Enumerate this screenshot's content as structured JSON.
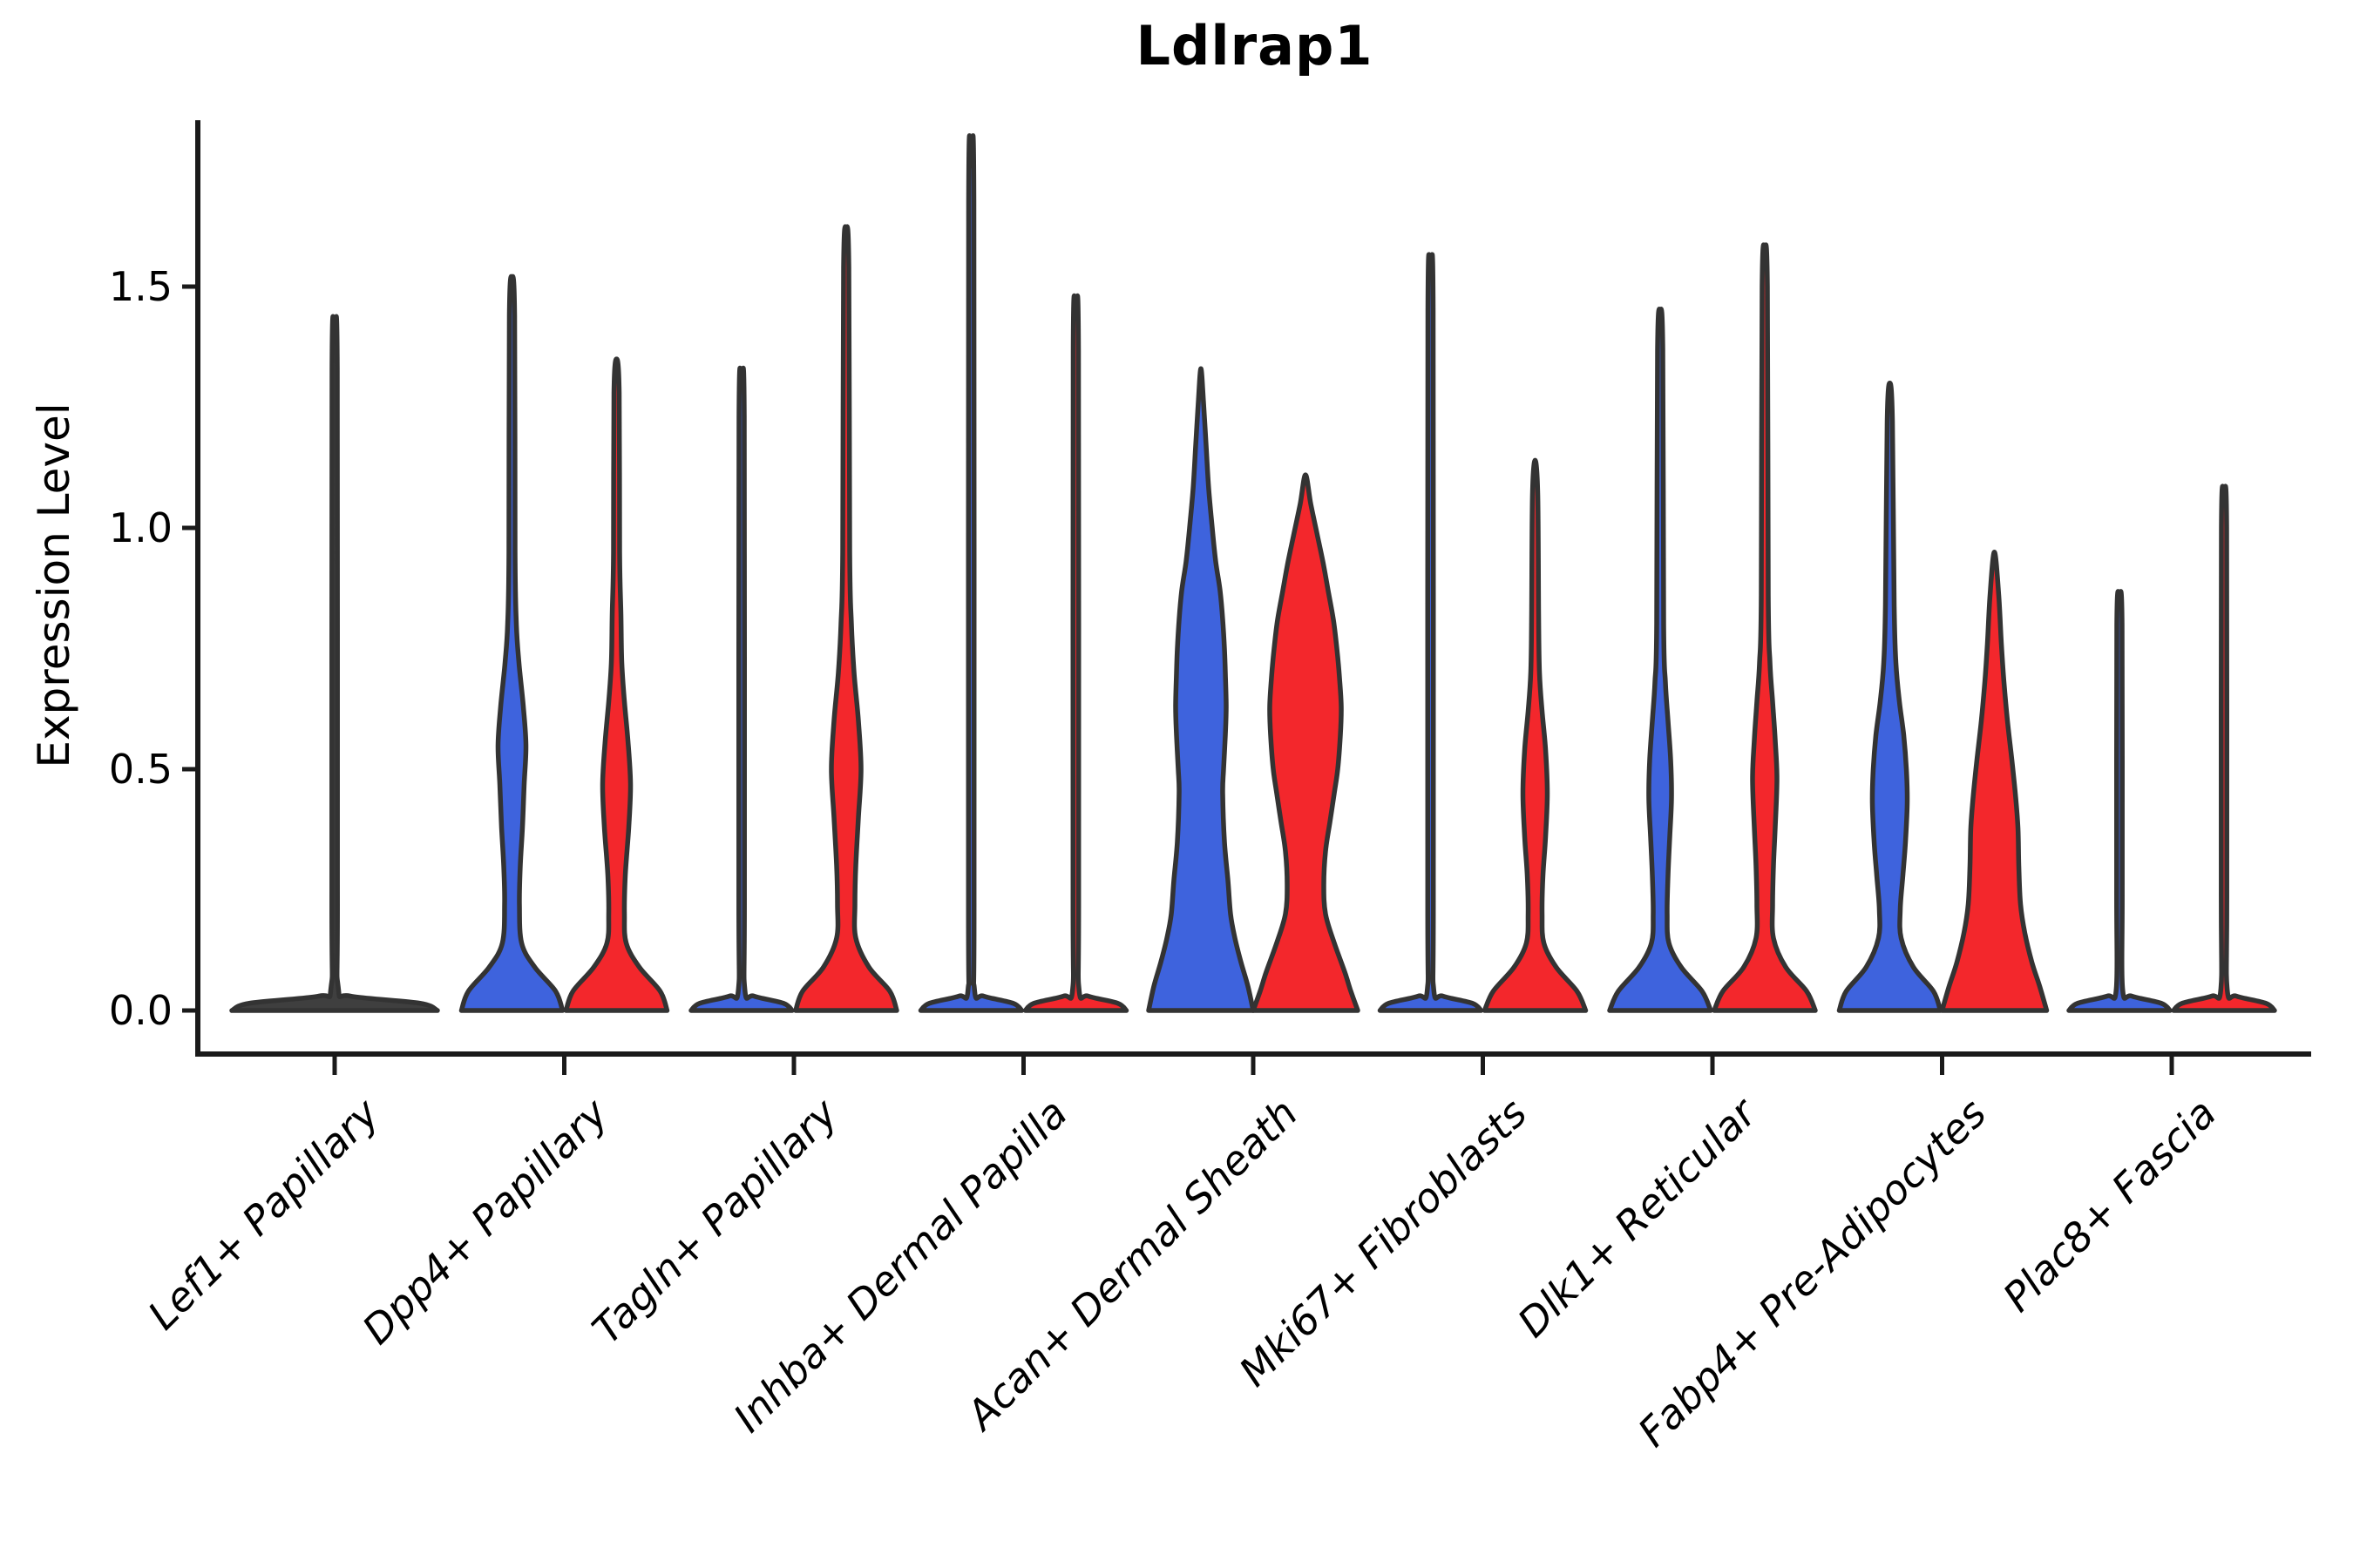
{
  "chart_data": {
    "type": "violin",
    "title": "Ldlrap1",
    "ylabel": "Expression Level",
    "xlabel": "",
    "grid": false,
    "legend": "none",
    "y_axis": {
      "ticks": [
        {
          "label": "0.0",
          "value": 0.0
        },
        {
          "label": "0.5",
          "value": 0.5
        },
        {
          "label": "1.0",
          "value": 1.0
        },
        {
          "label": "1.5",
          "value": 1.5
        }
      ],
      "ylim": [
        0,
        1.84
      ]
    },
    "categories": [
      "Lef1+ Papillary",
      "Dpp4+ Papillary",
      "Tagln+ Papillary",
      "Inhba+ Dermal Papilla",
      "Acan+ Dermal Sheath",
      "Mki67+ Fibroblasts",
      "Dlk1+ Reticular",
      "Fabp4+ Pre-Adipocytes",
      "Plac8+ Fascia"
    ],
    "colors": {
      "blue": "#3E63DD",
      "red": "#F3272C",
      "single": "#3F3F3F",
      "outline": "#333333",
      "axis": "#1A1A1A"
    },
    "violins": [
      {
        "category_index": 0,
        "group": "single",
        "max_expression": 1.4,
        "bulk_at_zero": true,
        "profile": [
          [
            0,
            118
          ],
          [
            0.015,
            98
          ],
          [
            0.03,
            18
          ],
          [
            0.05,
            4
          ],
          [
            0.25,
            3.2
          ],
          [
            1.33,
            3
          ],
          [
            1.4,
            0
          ]
        ]
      },
      {
        "category_index": 1,
        "group": "blue",
        "max_expression": 1.52,
        "bulk_at_zero": true,
        "profile": [
          [
            0,
            58
          ],
          [
            0.04,
            50
          ],
          [
            0.09,
            26
          ],
          [
            0.14,
            11
          ],
          [
            0.22,
            8.5
          ],
          [
            0.3,
            9.5
          ],
          [
            0.38,
            12
          ],
          [
            0.47,
            14
          ],
          [
            0.55,
            16
          ],
          [
            0.63,
            13
          ],
          [
            0.72,
            8
          ],
          [
            0.8,
            5
          ],
          [
            0.95,
            3.5
          ],
          [
            1.44,
            3
          ],
          [
            1.52,
            0
          ]
        ]
      },
      {
        "category_index": 1,
        "group": "red",
        "max_expression": 1.35,
        "bulk_at_zero": true,
        "profile": [
          [
            0,
            58
          ],
          [
            0.04,
            50
          ],
          [
            0.09,
            26
          ],
          [
            0.14,
            11
          ],
          [
            0.2,
            9
          ],
          [
            0.28,
            10
          ],
          [
            0.38,
            14
          ],
          [
            0.47,
            16
          ],
          [
            0.56,
            13
          ],
          [
            0.64,
            9
          ],
          [
            0.72,
            6
          ],
          [
            0.82,
            5
          ],
          [
            0.95,
            3.5
          ],
          [
            1.28,
            3
          ],
          [
            1.35,
            0
          ]
        ]
      },
      {
        "category_index": 2,
        "group": "blue",
        "max_expression": 1.3,
        "bulk_at_zero": true,
        "profile": [
          [
            0,
            58
          ],
          [
            0.015,
            48
          ],
          [
            0.03,
            14
          ],
          [
            0.045,
            3.6
          ],
          [
            0.25,
            3.2
          ],
          [
            1.23,
            3
          ],
          [
            1.3,
            0
          ]
        ]
      },
      {
        "category_index": 2,
        "group": "red",
        "max_expression": 1.62,
        "bulk_at_zero": true,
        "profile": [
          [
            0,
            58
          ],
          [
            0.04,
            50
          ],
          [
            0.09,
            26
          ],
          [
            0.15,
            11
          ],
          [
            0.22,
            10
          ],
          [
            0.3,
            11
          ],
          [
            0.4,
            14
          ],
          [
            0.5,
            17
          ],
          [
            0.6,
            14
          ],
          [
            0.7,
            9
          ],
          [
            0.8,
            6
          ],
          [
            0.95,
            4
          ],
          [
            1.54,
            3
          ],
          [
            1.62,
            0
          ]
        ]
      },
      {
        "category_index": 3,
        "group": "blue",
        "max_expression": 1.75,
        "bulk_at_zero": true,
        "profile": [
          [
            0,
            58
          ],
          [
            0.015,
            48
          ],
          [
            0.03,
            14
          ],
          [
            0.045,
            3.6
          ],
          [
            0.25,
            3.2
          ],
          [
            1.68,
            3
          ],
          [
            1.75,
            0
          ]
        ]
      },
      {
        "category_index": 3,
        "group": "red",
        "max_expression": 1.44,
        "bulk_at_zero": true,
        "profile": [
          [
            0,
            58
          ],
          [
            0.015,
            48
          ],
          [
            0.03,
            14
          ],
          [
            0.045,
            3.6
          ],
          [
            0.25,
            3.2
          ],
          [
            1.37,
            3
          ],
          [
            1.44,
            0
          ]
        ]
      },
      {
        "category_index": 4,
        "group": "blue",
        "max_expression": 1.33,
        "bulk_at_zero": false,
        "profile": [
          [
            0,
            60
          ],
          [
            0.05,
            54
          ],
          [
            0.1,
            46
          ],
          [
            0.15,
            39
          ],
          [
            0.2,
            34
          ],
          [
            0.27,
            31
          ],
          [
            0.35,
            27
          ],
          [
            0.45,
            25
          ],
          [
            0.5,
            26
          ],
          [
            0.57,
            28
          ],
          [
            0.63,
            29
          ],
          [
            0.7,
            28
          ],
          [
            0.75,
            27
          ],
          [
            0.81,
            25
          ],
          [
            0.87,
            22
          ],
          [
            0.93,
            17
          ],
          [
            1.0,
            13
          ],
          [
            1.08,
            9
          ],
          [
            1.17,
            6
          ],
          [
            1.26,
            3
          ],
          [
            1.33,
            0
          ]
        ]
      },
      {
        "category_index": 4,
        "group": "red",
        "max_expression": 1.11,
        "bulk_at_zero": false,
        "profile": [
          [
            0,
            60
          ],
          [
            0.04,
            52
          ],
          [
            0.08,
            45
          ],
          [
            0.14,
            33
          ],
          [
            0.2,
            23
          ],
          [
            0.26,
            21
          ],
          [
            0.33,
            23
          ],
          [
            0.39,
            28
          ],
          [
            0.45,
            33
          ],
          [
            0.5,
            37
          ],
          [
            0.57,
            40
          ],
          [
            0.63,
            41
          ],
          [
            0.69,
            39
          ],
          [
            0.75,
            36
          ],
          [
            0.81,
            32
          ],
          [
            0.87,
            26
          ],
          [
            0.93,
            20
          ],
          [
            0.99,
            13
          ],
          [
            1.05,
            6
          ],
          [
            1.11,
            0
          ]
        ]
      },
      {
        "category_index": 5,
        "group": "blue",
        "max_expression": 1.52,
        "bulk_at_zero": true,
        "profile": [
          [
            0,
            58
          ],
          [
            0.015,
            48
          ],
          [
            0.03,
            14
          ],
          [
            0.045,
            3.6
          ],
          [
            0.25,
            3.2
          ],
          [
            1.45,
            3
          ],
          [
            1.52,
            0
          ]
        ]
      },
      {
        "category_index": 5,
        "group": "red",
        "max_expression": 1.14,
        "bulk_at_zero": true,
        "profile": [
          [
            0,
            58
          ],
          [
            0.04,
            48
          ],
          [
            0.09,
            24
          ],
          [
            0.14,
            10
          ],
          [
            0.2,
            8
          ],
          [
            0.28,
            9
          ],
          [
            0.36,
            12
          ],
          [
            0.45,
            14
          ],
          [
            0.54,
            12
          ],
          [
            0.62,
            8
          ],
          [
            0.7,
            5
          ],
          [
            0.82,
            4
          ],
          [
            1.07,
            3
          ],
          [
            1.14,
            0
          ]
        ]
      },
      {
        "category_index": 6,
        "group": "blue",
        "max_expression": 1.45,
        "bulk_at_zero": true,
        "profile": [
          [
            0,
            58
          ],
          [
            0.04,
            48
          ],
          [
            0.09,
            24
          ],
          [
            0.14,
            10
          ],
          [
            0.2,
            8
          ],
          [
            0.28,
            9
          ],
          [
            0.36,
            11
          ],
          [
            0.44,
            13
          ],
          [
            0.52,
            12
          ],
          [
            0.6,
            9
          ],
          [
            0.68,
            6
          ],
          [
            0.8,
            4
          ],
          [
            1.37,
            3
          ],
          [
            1.45,
            0
          ]
        ]
      },
      {
        "category_index": 6,
        "group": "red",
        "max_expression": 1.58,
        "bulk_at_zero": true,
        "profile": [
          [
            0,
            58
          ],
          [
            0.04,
            48
          ],
          [
            0.09,
            24
          ],
          [
            0.15,
            10
          ],
          [
            0.22,
            9
          ],
          [
            0.3,
            10
          ],
          [
            0.38,
            12
          ],
          [
            0.48,
            14
          ],
          [
            0.56,
            12
          ],
          [
            0.64,
            9
          ],
          [
            0.72,
            6
          ],
          [
            0.86,
            4
          ],
          [
            1.5,
            3
          ],
          [
            1.58,
            0
          ]
        ]
      },
      {
        "category_index": 7,
        "group": "blue",
        "max_expression": 1.3,
        "bulk_at_zero": true,
        "profile": [
          [
            0,
            58
          ],
          [
            0.04,
            50
          ],
          [
            0.09,
            27
          ],
          [
            0.15,
            13
          ],
          [
            0.21,
            12
          ],
          [
            0.28,
            15
          ],
          [
            0.35,
            18
          ],
          [
            0.43,
            20
          ],
          [
            0.5,
            19
          ],
          [
            0.57,
            16
          ],
          [
            0.64,
            11
          ],
          [
            0.72,
            7
          ],
          [
            0.84,
            5
          ],
          [
            1.22,
            3
          ],
          [
            1.3,
            0
          ]
        ]
      },
      {
        "category_index": 7,
        "group": "red",
        "max_expression": 0.95,
        "bulk_at_zero": false,
        "profile": [
          [
            0,
            60
          ],
          [
            0.05,
            52
          ],
          [
            0.1,
            43
          ],
          [
            0.16,
            35
          ],
          [
            0.22,
            30
          ],
          [
            0.3,
            28
          ],
          [
            0.38,
            27
          ],
          [
            0.45,
            24
          ],
          [
            0.52,
            20
          ],
          [
            0.6,
            15
          ],
          [
            0.68,
            11
          ],
          [
            0.76,
            8
          ],
          [
            0.86,
            5
          ],
          [
            0.95,
            0
          ]
        ]
      },
      {
        "category_index": 8,
        "group": "blue",
        "max_expression": 0.86,
        "bulk_at_zero": true,
        "profile": [
          [
            0,
            58
          ],
          [
            0.015,
            48
          ],
          [
            0.03,
            14
          ],
          [
            0.045,
            3.6
          ],
          [
            0.25,
            3.2
          ],
          [
            0.8,
            3
          ],
          [
            0.86,
            0
          ]
        ]
      },
      {
        "category_index": 8,
        "group": "red",
        "max_expression": 1.07,
        "bulk_at_zero": true,
        "profile": [
          [
            0,
            58
          ],
          [
            0.015,
            48
          ],
          [
            0.03,
            14
          ],
          [
            0.045,
            3.6
          ],
          [
            0.25,
            3.2
          ],
          [
            1.0,
            3
          ],
          [
            1.07,
            0
          ]
        ]
      }
    ]
  }
}
